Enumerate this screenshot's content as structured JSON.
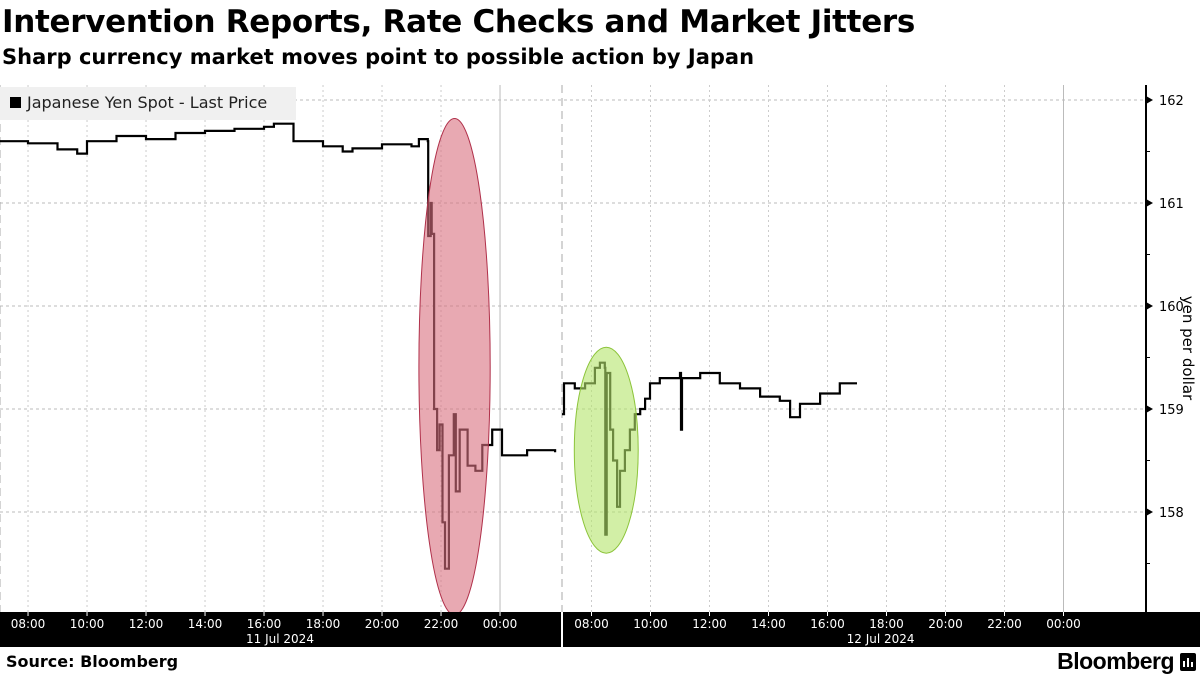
{
  "chart_data": {
    "type": "line",
    "title": "Intervention Reports, Rate Checks and Market Jitters",
    "subtitle": "Sharp currency market moves point to possible action by Japan",
    "ylabel": "yen per dollar",
    "ylim": [
      157.0,
      162.2
    ],
    "yticks": [
      "162",
      "161",
      "160",
      "159",
      "158"
    ],
    "ytick_values": [
      162,
      161,
      160,
      159,
      158
    ],
    "y_axis_side": "right",
    "grid": true,
    "legend": {
      "placement": "top-left",
      "entries": [
        "Japanese Yen Spot - Last Price"
      ]
    },
    "x_sessions": [
      {
        "date_label": "11 Jul 2024",
        "start": "2024-07-11 07:03",
        "end": "2024-07-12 02:05",
        "tick_labels": [
          "08:00",
          "10:00",
          "12:00",
          "14:00",
          "16:00",
          "18:00",
          "20:00",
          "22:00",
          "00:00"
        ]
      },
      {
        "date_label": "12 Jul 2024",
        "start": "2024-07-12 07:00",
        "end": "2024-07-13 01:30",
        "tick_labels": [
          "08:00",
          "10:00",
          "12:00",
          "14:00",
          "16:00",
          "18:00",
          "20:00",
          "22:00",
          "00:00"
        ]
      }
    ],
    "series": [
      {
        "name": "Japanese Yen Spot - Last Price",
        "color": "#000000",
        "points": [
          [
            "2024-07-11 07:03",
            161.6
          ],
          [
            "2024-07-11 08:00",
            161.58
          ],
          [
            "2024-07-11 09:00",
            161.52
          ],
          [
            "2024-07-11 09:40",
            161.48
          ],
          [
            "2024-07-11 10:00",
            161.6
          ],
          [
            "2024-07-11 11:00",
            161.65
          ],
          [
            "2024-07-11 12:00",
            161.62
          ],
          [
            "2024-07-11 13:00",
            161.68
          ],
          [
            "2024-07-11 14:00",
            161.7
          ],
          [
            "2024-07-11 15:00",
            161.72
          ],
          [
            "2024-07-11 16:00",
            161.74
          ],
          [
            "2024-07-11 16:20",
            161.77
          ],
          [
            "2024-07-11 17:00",
            161.6
          ],
          [
            "2024-07-11 18:00",
            161.55
          ],
          [
            "2024-07-11 18:40",
            161.5
          ],
          [
            "2024-07-11 19:00",
            161.53
          ],
          [
            "2024-07-11 20:00",
            161.57
          ],
          [
            "2024-07-11 21:00",
            161.55
          ],
          [
            "2024-07-11 21:15",
            161.62
          ],
          [
            "2024-07-11 21:33",
            161.6
          ],
          [
            "2024-07-11 21:34",
            160.68
          ],
          [
            "2024-07-11 21:39",
            161.0
          ],
          [
            "2024-07-11 21:41",
            160.7
          ],
          [
            "2024-07-11 21:46",
            159.0
          ],
          [
            "2024-07-11 21:52",
            158.6
          ],
          [
            "2024-07-11 21:57",
            158.85
          ],
          [
            "2024-07-11 22:03",
            157.9
          ],
          [
            "2024-07-11 22:08",
            157.45
          ],
          [
            "2024-07-11 22:16",
            158.55
          ],
          [
            "2024-07-11 22:26",
            158.95
          ],
          [
            "2024-07-11 22:30",
            158.2
          ],
          [
            "2024-07-11 22:38",
            158.8
          ],
          [
            "2024-07-11 22:54",
            158.45
          ],
          [
            "2024-07-11 23:10",
            158.4
          ],
          [
            "2024-07-11 23:24",
            158.65
          ],
          [
            "2024-07-11 23:44",
            158.8
          ],
          [
            "2024-07-12 00:04",
            158.55
          ],
          [
            "2024-07-12 00:55",
            158.6
          ],
          [
            "2024-07-12 01:52",
            158.58
          ],
          [
            "2024-07-12 07:00",
            158.95
          ],
          [
            "2024-07-12 07:04",
            159.25
          ],
          [
            "2024-07-12 07:26",
            159.2
          ],
          [
            "2024-07-12 07:47",
            159.25
          ],
          [
            "2024-07-12 08:07",
            159.4
          ],
          [
            "2024-07-12 08:17",
            159.45
          ],
          [
            "2024-07-12 08:27",
            159.4
          ],
          [
            "2024-07-12 08:28",
            157.78
          ],
          [
            "2024-07-12 08:31",
            159.35
          ],
          [
            "2024-07-12 08:38",
            158.8
          ],
          [
            "2024-07-12 08:44",
            158.5
          ],
          [
            "2024-07-12 08:52",
            158.05
          ],
          [
            "2024-07-12 08:58",
            158.4
          ],
          [
            "2024-07-12 09:08",
            158.6
          ],
          [
            "2024-07-12 09:18",
            158.8
          ],
          [
            "2024-07-12 09:28",
            158.95
          ],
          [
            "2024-07-12 09:39",
            159.0
          ],
          [
            "2024-07-12 09:49",
            159.1
          ],
          [
            "2024-07-12 09:59",
            159.25
          ],
          [
            "2024-07-12 10:19",
            159.3
          ],
          [
            "2024-07-12 11:00",
            159.35
          ],
          [
            "2024-07-12 11:02",
            158.8
          ],
          [
            "2024-07-12 11:04",
            159.3
          ],
          [
            "2024-07-12 11:41",
            159.35
          ],
          [
            "2024-07-12 12:21",
            159.25
          ],
          [
            "2024-07-12 13:02",
            159.2
          ],
          [
            "2024-07-12 13:43",
            159.12
          ],
          [
            "2024-07-12 14:23",
            159.08
          ],
          [
            "2024-07-12 14:44",
            158.92
          ],
          [
            "2024-07-12 15:04",
            159.05
          ],
          [
            "2024-07-12 15:45",
            159.15
          ],
          [
            "2024-07-12 16:25",
            159.25
          ],
          [
            "2024-07-12 17:00",
            159.25
          ]
        ]
      }
    ],
    "annotations": [
      {
        "shape": "ellipse",
        "from": "2024-07-11 21:15",
        "to": "2024-07-11 23:40",
        "ymin": 157.0,
        "ymax": 161.82,
        "color": "#d9707f"
      },
      {
        "shape": "ellipse",
        "from": "2024-07-12 07:25",
        "to": "2024-07-12 09:35",
        "ymin": 157.6,
        "ymax": 159.6,
        "color": "#b4e56b"
      }
    ]
  },
  "footer": {
    "source": "Source: Bloomberg",
    "logo": "Bloomberg"
  }
}
